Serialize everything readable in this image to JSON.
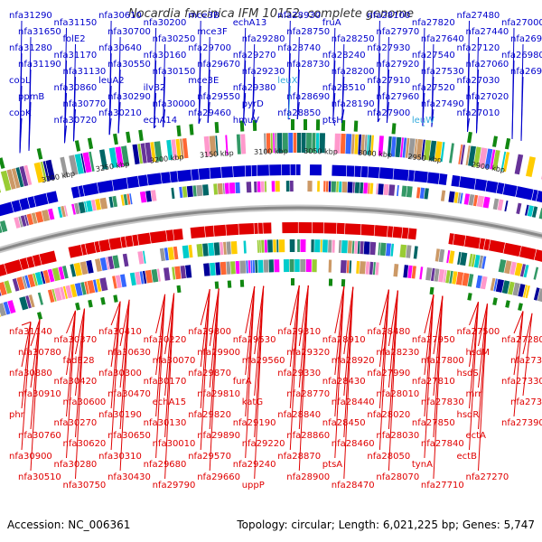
{
  "title": "Nocardia farcinica IFM 10152, complete genome",
  "footer": {
    "accession": "Accession: NC_006361",
    "summary": "Topology: circular; Length: 6,021,225 bp; Genes: 5,747"
  },
  "colors": {
    "forward": "#0000cc",
    "reverse": "#e00000",
    "trna": "#33aadd",
    "backbone": "#888888",
    "marker": "#118811"
  },
  "ticks": [
    "3300 kbp",
    "3250 kbp",
    "3200 kbp",
    "3150 kbp",
    "3100 kbp",
    "3050 kbp",
    "3000 kbp",
    "2950 kbp",
    "2900 kbp"
  ],
  "top_genes": [
    {
      "label": "nfa31290",
      "trna": false
    },
    {
      "label": "nfa31650",
      "trna": false
    },
    {
      "label": "nfa31280",
      "trna": false
    },
    {
      "label": "nfa31190",
      "trna": false
    },
    {
      "label": "cobL",
      "trna": false
    },
    {
      "label": "ppmB",
      "trna": false
    },
    {
      "label": "cobK",
      "trna": false
    },
    {
      "label": "nfa31150",
      "trna": false
    },
    {
      "label": "folE2",
      "trna": false
    },
    {
      "label": "nfa31170",
      "trna": false
    },
    {
      "label": "nfa31130",
      "trna": false
    },
    {
      "label": "nfa30860",
      "trna": false
    },
    {
      "label": "nfa30770",
      "trna": false
    },
    {
      "label": "nfa30720",
      "trna": false
    },
    {
      "label": "nfa30610",
      "trna": false
    },
    {
      "label": "nfa30700",
      "trna": false
    },
    {
      "label": "nfa30640",
      "trna": false
    },
    {
      "label": "nfa30550",
      "trna": false
    },
    {
      "label": "leuA2",
      "trna": false
    },
    {
      "label": "nfa30290",
      "trna": false
    },
    {
      "label": "nfa30210",
      "trna": false
    },
    {
      "label": "nfa30200",
      "trna": false
    },
    {
      "label": "nfa30250",
      "trna": false
    },
    {
      "label": "nfa30160",
      "trna": false
    },
    {
      "label": "nfa30150",
      "trna": false
    },
    {
      "label": "ilvB2",
      "trna": false
    },
    {
      "label": "nfa30000",
      "trna": false
    },
    {
      "label": "echA14",
      "trna": false
    },
    {
      "label": "mce3B",
      "trna": false
    },
    {
      "label": "mce3F",
      "trna": false
    },
    {
      "label": "nfa29700",
      "trna": false
    },
    {
      "label": "nfa29670",
      "trna": false
    },
    {
      "label": "mce3E",
      "trna": false
    },
    {
      "label": "nfa29550",
      "trna": false
    },
    {
      "label": "nfa29460",
      "trna": false
    },
    {
      "label": "echA13",
      "trna": false
    },
    {
      "label": "nfa29280",
      "trna": false
    },
    {
      "label": "nfa29270",
      "trna": false
    },
    {
      "label": "nfa29230",
      "trna": false
    },
    {
      "label": "nfa29380",
      "trna": false
    },
    {
      "label": "pyrD",
      "trna": false
    },
    {
      "label": "hmuV",
      "trna": false
    },
    {
      "label": "nfa28930",
      "trna": false
    },
    {
      "label": "nfa28750",
      "trna": false
    },
    {
      "label": "nfa28740",
      "trna": false
    },
    {
      "label": "nfa28730",
      "trna": false
    },
    {
      "label": "leuX",
      "trna": true
    },
    {
      "label": "nfa28690",
      "trna": false
    },
    {
      "label": "nfa28850",
      "trna": false
    },
    {
      "label": "fruA",
      "trna": false
    },
    {
      "label": "nfa28250",
      "trna": false
    },
    {
      "label": "nfa28240",
      "trna": false
    },
    {
      "label": "nfa28200",
      "trna": false
    },
    {
      "label": "nfa28510",
      "trna": false
    },
    {
      "label": "nfa28190",
      "trna": false
    },
    {
      "label": "ptsH",
      "trna": false
    },
    {
      "label": "nfa28100",
      "trna": false
    },
    {
      "label": "nfa27970",
      "trna": false
    },
    {
      "label": "nfa27930",
      "trna": false
    },
    {
      "label": "nfa27920",
      "trna": false
    },
    {
      "label": "nfa27910",
      "trna": false
    },
    {
      "label": "nfa27960",
      "trna": false
    },
    {
      "label": "nfa27900",
      "trna": false
    },
    {
      "label": "nfa27820",
      "trna": false
    },
    {
      "label": "nfa27640",
      "trna": false
    },
    {
      "label": "nfa27540",
      "trna": false
    },
    {
      "label": "nfa27530",
      "trna": false
    },
    {
      "label": "nfa27520",
      "trna": false
    },
    {
      "label": "nfa27490",
      "trna": false
    },
    {
      "label": "leuW",
      "trna": true
    },
    {
      "label": "nfa27480",
      "trna": false
    },
    {
      "label": "nfa27440",
      "trna": false
    },
    {
      "label": "nfa27120",
      "trna": false
    },
    {
      "label": "nfa27060",
      "trna": false
    },
    {
      "label": "nfa27030",
      "trna": false
    },
    {
      "label": "nfa27020",
      "trna": false
    },
    {
      "label": "nfa27010",
      "trna": false
    },
    {
      "label": "nfa27000",
      "trna": false
    },
    {
      "label": "nfa26990",
      "trna": false
    },
    {
      "label": "nfa26980",
      "trna": false
    },
    {
      "label": "nfa26970",
      "trna": false
    }
  ],
  "bottom_genes": [
    {
      "label": "nfa31140"
    },
    {
      "label": "nfa30780"
    },
    {
      "label": "nfa30880"
    },
    {
      "label": "nfa30910"
    },
    {
      "label": "phr"
    },
    {
      "label": "nfa30760"
    },
    {
      "label": "nfa30900"
    },
    {
      "label": "nfa30510"
    },
    {
      "label": "nfa30370"
    },
    {
      "label": "fadE28"
    },
    {
      "label": "nfa30420"
    },
    {
      "label": "nfa30600"
    },
    {
      "label": "nfa30270"
    },
    {
      "label": "nfa30620"
    },
    {
      "label": "nfa30280"
    },
    {
      "label": "nfa30750"
    },
    {
      "label": "nfa30410"
    },
    {
      "label": "nfa30630"
    },
    {
      "label": "nfa30300"
    },
    {
      "label": "nfa30470"
    },
    {
      "label": "nfa30190"
    },
    {
      "label": "nfa30650"
    },
    {
      "label": "nfa30310"
    },
    {
      "label": "nfa30430"
    },
    {
      "label": "nfa30220"
    },
    {
      "label": "nfa30070"
    },
    {
      "label": "nfa30170"
    },
    {
      "label": "echA15"
    },
    {
      "label": "nfa30130"
    },
    {
      "label": "nfa30010"
    },
    {
      "label": "nfa29680"
    },
    {
      "label": "nfa29790"
    },
    {
      "label": "nfa29800"
    },
    {
      "label": "nfa29900"
    },
    {
      "label": "nfa29870"
    },
    {
      "label": "nfa29810"
    },
    {
      "label": "nfa29820"
    },
    {
      "label": "nfa29890"
    },
    {
      "label": "nfa29570"
    },
    {
      "label": "nfa29660"
    },
    {
      "label": "nfa29530"
    },
    {
      "label": "nfa29560"
    },
    {
      "label": "furA"
    },
    {
      "label": "katG"
    },
    {
      "label": "nfa29190"
    },
    {
      "label": "nfa29220"
    },
    {
      "label": "nfa29240"
    },
    {
      "label": "uppP"
    },
    {
      "label": "nfa29310"
    },
    {
      "label": "nfa29320"
    },
    {
      "label": "nfa29330"
    },
    {
      "label": "nfa28770"
    },
    {
      "label": "nfa28840"
    },
    {
      "label": "nfa28860"
    },
    {
      "label": "nfa28870"
    },
    {
      "label": "nfa28900"
    },
    {
      "label": "nfa28910"
    },
    {
      "label": "nfa28920"
    },
    {
      "label": "nfa28430"
    },
    {
      "label": "nfa28440"
    },
    {
      "label": "nfa28450"
    },
    {
      "label": "nfa28460"
    },
    {
      "label": "ptsA"
    },
    {
      "label": "nfa28470"
    },
    {
      "label": "nfa28480"
    },
    {
      "label": "nfa28230"
    },
    {
      "label": "nfa27990"
    },
    {
      "label": "nfa28010"
    },
    {
      "label": "nfa28020"
    },
    {
      "label": "nfa28030"
    },
    {
      "label": "nfa28050"
    },
    {
      "label": "nfa28070"
    },
    {
      "label": "nfa27950"
    },
    {
      "label": "nfa27800"
    },
    {
      "label": "nfa27810"
    },
    {
      "label": "nfa27830"
    },
    {
      "label": "nfa27850"
    },
    {
      "label": "nfa27840"
    },
    {
      "label": "tynA"
    },
    {
      "label": "nfa27710"
    },
    {
      "label": "nfa27500"
    },
    {
      "label": "hsdM"
    },
    {
      "label": "hsdS"
    },
    {
      "label": "mrr"
    },
    {
      "label": "hsdR"
    },
    {
      "label": "ectA"
    },
    {
      "label": "ectB"
    },
    {
      "label": "nfa27270"
    },
    {
      "label": "nfa27280"
    },
    {
      "label": "nfa27320"
    },
    {
      "label": "nfa27330"
    },
    {
      "label": "nfa27350"
    },
    {
      "label": "nfa27390"
    }
  ]
}
